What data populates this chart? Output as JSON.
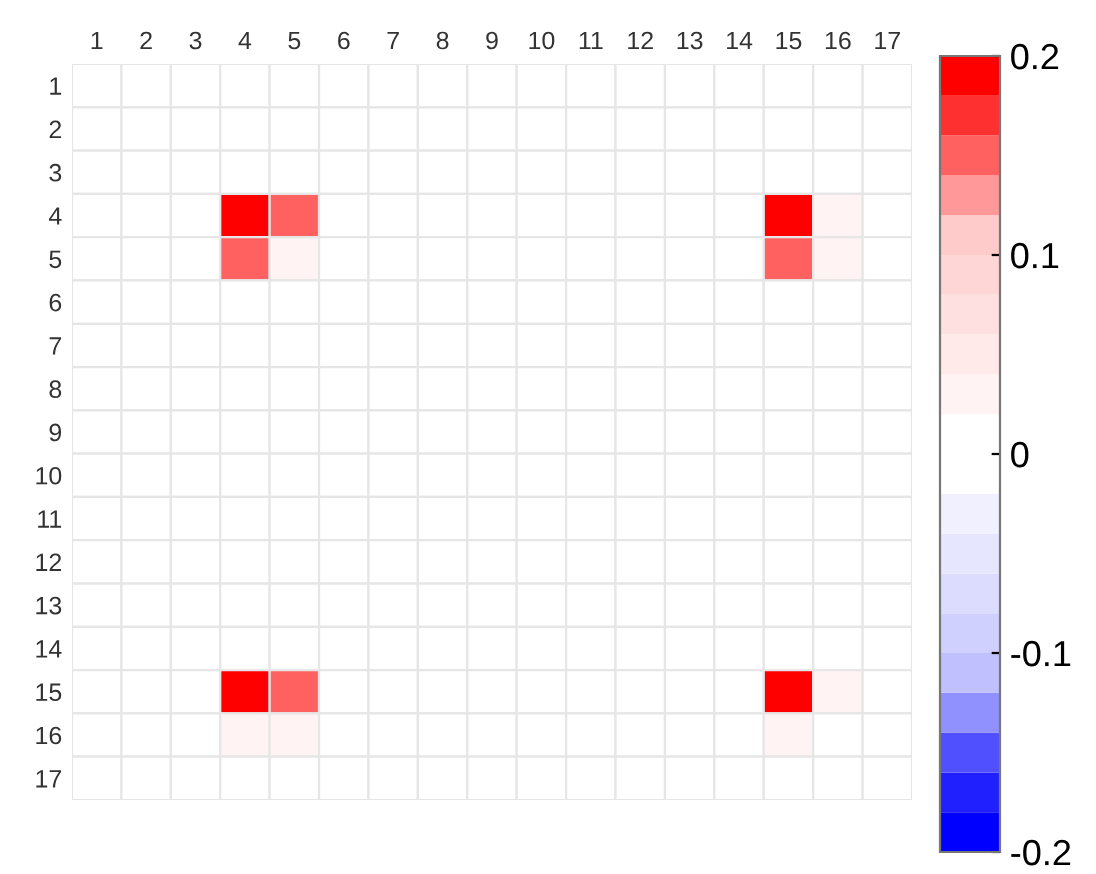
{
  "chart_data": {
    "type": "heatmap",
    "categories": [
      "1",
      "2",
      "3",
      "4",
      "5",
      "6",
      "7",
      "8",
      "9",
      "10",
      "11",
      "12",
      "13",
      "14",
      "15",
      "16",
      "17"
    ],
    "y_categories": [
      "1",
      "2",
      "3",
      "4",
      "5",
      "6",
      "7",
      "8",
      "9",
      "10",
      "11",
      "12",
      "13",
      "14",
      "15",
      "16",
      "17"
    ],
    "cells": [
      [
        0,
        0,
        0,
        0,
        0,
        0,
        0,
        0,
        0,
        0,
        0,
        0,
        0,
        0,
        0,
        0,
        0
      ],
      [
        0,
        0,
        0,
        0,
        0,
        0,
        0,
        0,
        0,
        0,
        0,
        0,
        0,
        0,
        0,
        0,
        0
      ],
      [
        0,
        0,
        0,
        0,
        0,
        0,
        0,
        0,
        0,
        0,
        0,
        0,
        0,
        0,
        0,
        0,
        0
      ],
      [
        0,
        0,
        0,
        0.2,
        0.14,
        0,
        0,
        0,
        0,
        0,
        0,
        0,
        0,
        0,
        0.2,
        0.02,
        0
      ],
      [
        0,
        0,
        0,
        0.14,
        0.03,
        0,
        0,
        0,
        0,
        0,
        0,
        0,
        0,
        0,
        0.14,
        0.02,
        0
      ],
      [
        0,
        0,
        0,
        0,
        0,
        0,
        0,
        0,
        0,
        0,
        0,
        0,
        0,
        0,
        0,
        0,
        0
      ],
      [
        0,
        0,
        0,
        0,
        0,
        0,
        0,
        0,
        0,
        0,
        0,
        0,
        0,
        0,
        0,
        0,
        0
      ],
      [
        0,
        0,
        0,
        0,
        0,
        0,
        0,
        0,
        0,
        0,
        0,
        0,
        0,
        0,
        0,
        0,
        0
      ],
      [
        0,
        0,
        0,
        0,
        0,
        0,
        0,
        0,
        0,
        0,
        0,
        0,
        0,
        0,
        0,
        0,
        0
      ],
      [
        0,
        0,
        0,
        0,
        0,
        0,
        0,
        0,
        0,
        0,
        0,
        0,
        0,
        0,
        0,
        0,
        0
      ],
      [
        0,
        0,
        0,
        0,
        0,
        0,
        0,
        0,
        0,
        0,
        0,
        0,
        0,
        0,
        0,
        0,
        0
      ],
      [
        0,
        0,
        0,
        0,
        0,
        0,
        0,
        0,
        0,
        0,
        0,
        0,
        0,
        0,
        0,
        0,
        0
      ],
      [
        0,
        0,
        0,
        0,
        0,
        0,
        0,
        0,
        0,
        0,
        0,
        0,
        0,
        0,
        0,
        0,
        0
      ],
      [
        0,
        0,
        0,
        0,
        0,
        0,
        0,
        0,
        0,
        0,
        0,
        0,
        0,
        0,
        0,
        0,
        0
      ],
      [
        0,
        0,
        0,
        0.2,
        0.14,
        0,
        0,
        0,
        0,
        0,
        0,
        0,
        0,
        0,
        0.2,
        0.03,
        0
      ],
      [
        0,
        0,
        0,
        0.03,
        0.02,
        0,
        0,
        0,
        0,
        0,
        0,
        0,
        0,
        0,
        0.03,
        0,
        0
      ],
      [
        0,
        0,
        0,
        0,
        0,
        0,
        0,
        0,
        0,
        0,
        0,
        0,
        0,
        0,
        0,
        0,
        0
      ]
    ],
    "clim": [
      -0.2,
      0.2
    ],
    "cticks": [
      -0.2,
      -0.1,
      0,
      0.1,
      0.2
    ],
    "colors": [
      "#0000ff",
      "#2020ff",
      "#5050ff",
      "#9090ff",
      "#c0c0ff",
      "#d0d0ff",
      "#dcdcff",
      "#e6e6ff",
      "#f0f0ff",
      "#ffffff",
      "#ffffff",
      "#fff3f3",
      "#ffe9e9",
      "#ffe0e0",
      "#ffd6d6",
      "#ffcaca",
      "#ff9999",
      "#ff6060",
      "#ff3030",
      "#ff0000"
    ]
  }
}
